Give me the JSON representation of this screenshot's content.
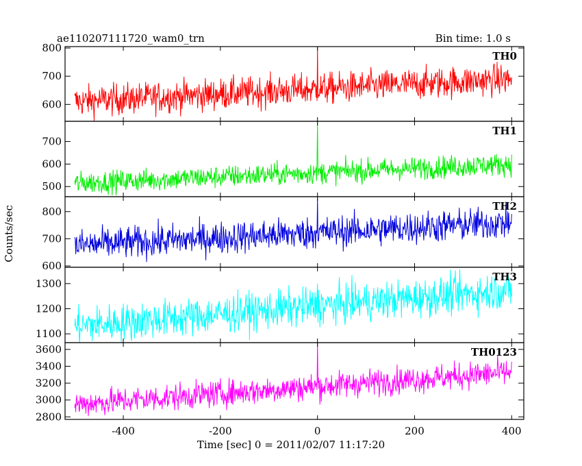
{
  "chart_data": {
    "type": "line",
    "title": "ae110207111720_wam0_trn",
    "subtitle": "Bin time: 1.0 s",
    "xlabel": "Time [sec] 0 = 2011/02/07 11:17:20",
    "ylabel": "Counts/sec",
    "xlim": [
      -520,
      425
    ],
    "xticks": [
      -400,
      -200,
      0,
      200,
      400
    ],
    "x_step_sec": 1.0,
    "x_start": -500,
    "x_end": 400,
    "grid": false,
    "panels": [
      {
        "name": "TH0",
        "color": "#ff0000",
        "ylim": [
          540,
          805
        ],
        "yticks": [
          600,
          700,
          800
        ],
        "trend": {
          "start": 610,
          "end": 690
        },
        "noise_amplitude": 28,
        "spike": {
          "x": 0,
          "y": 805
        }
      },
      {
        "name": "TH1",
        "color": "#00ee00",
        "ylim": [
          455,
          790
        ],
        "yticks": [
          500,
          600,
          700
        ],
        "trend": {
          "start": 515,
          "end": 600
        },
        "noise_amplitude": 25,
        "spike": {
          "x": 0,
          "y": 790
        }
      },
      {
        "name": "TH2",
        "color": "#0000dd",
        "ylim": [
          595,
          855
        ],
        "yticks": [
          600,
          700,
          800
        ],
        "trend": {
          "start": 675,
          "end": 760
        },
        "noise_amplitude": 30,
        "spike": {
          "x": 0,
          "y": 850
        }
      },
      {
        "name": "TH3",
        "color": "#00ffff",
        "ylim": [
          1065,
          1365
        ],
        "yticks": [
          1100,
          1200,
          1300
        ],
        "trend": {
          "start": 1130,
          "end": 1275
        },
        "noise_amplitude": 38,
        "spike": {
          "x": 0,
          "y": 1300
        }
      },
      {
        "name": "TH0123",
        "color": "#ff00ff",
        "ylim": [
          2770,
          3680
        ],
        "yticks": [
          2800,
          3000,
          3200,
          3400,
          3600
        ],
        "trend": {
          "start": 2950,
          "end": 3330
        },
        "noise_amplitude": 80,
        "spike": {
          "x": 0,
          "y": 3680
        }
      }
    ]
  }
}
